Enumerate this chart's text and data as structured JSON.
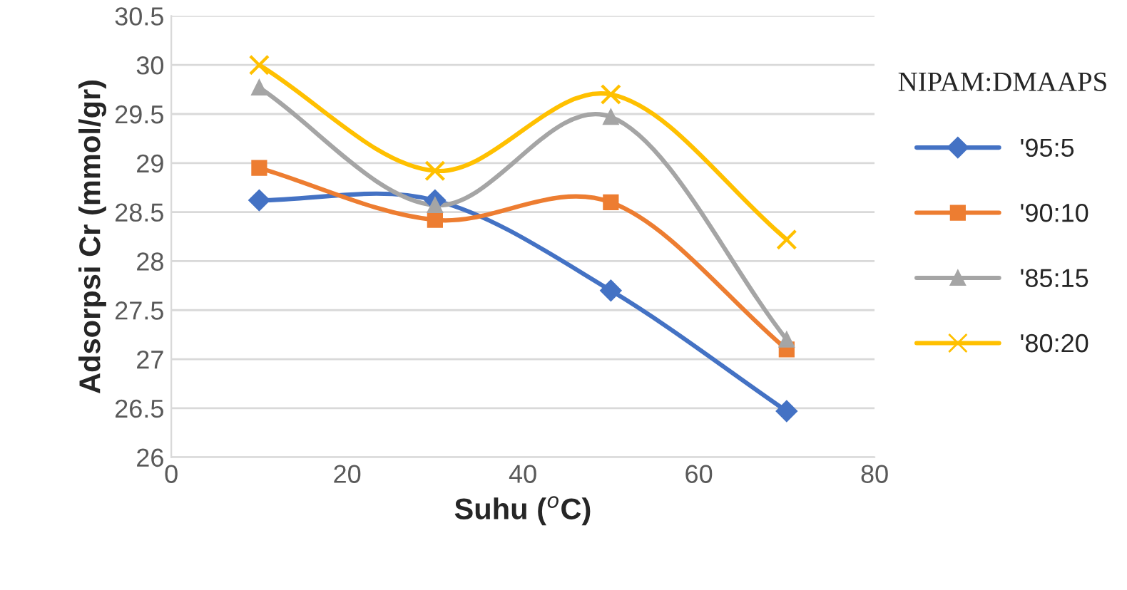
{
  "chart_data": {
    "type": "line",
    "xlabel": "Suhu ($^{o}$C)",
    "ylabel": "Adsorpsi Cr (mmol/gr)",
    "legend_title": "NIPAM:DMAAPS",
    "legend": "right",
    "grid": "y",
    "x": [
      10,
      30,
      50,
      70
    ],
    "xlim": [
      0,
      80
    ],
    "xticks": [
      0,
      20,
      40,
      60,
      80
    ],
    "ylim": [
      26,
      30.5
    ],
    "yticks": [
      26,
      26.5,
      27,
      27.5,
      28,
      28.5,
      29,
      29.5,
      30,
      30.5
    ],
    "series": [
      {
        "name": "'95:5",
        "color": "#4472c4",
        "marker": "diamond",
        "values": [
          28.62,
          28.62,
          27.7,
          26.47
        ]
      },
      {
        "name": "'90:10",
        "color": "#ed7d31",
        "marker": "square",
        "values": [
          28.95,
          28.42,
          28.6,
          27.1
        ]
      },
      {
        "name": "'85:15",
        "color": "#a5a5a5",
        "marker": "triangle",
        "values": [
          29.77,
          28.57,
          29.47,
          27.2
        ]
      },
      {
        "name": "'80:20",
        "color": "#ffc000",
        "marker": "cross",
        "values": [
          30.0,
          28.92,
          29.7,
          28.22
        ]
      }
    ]
  }
}
